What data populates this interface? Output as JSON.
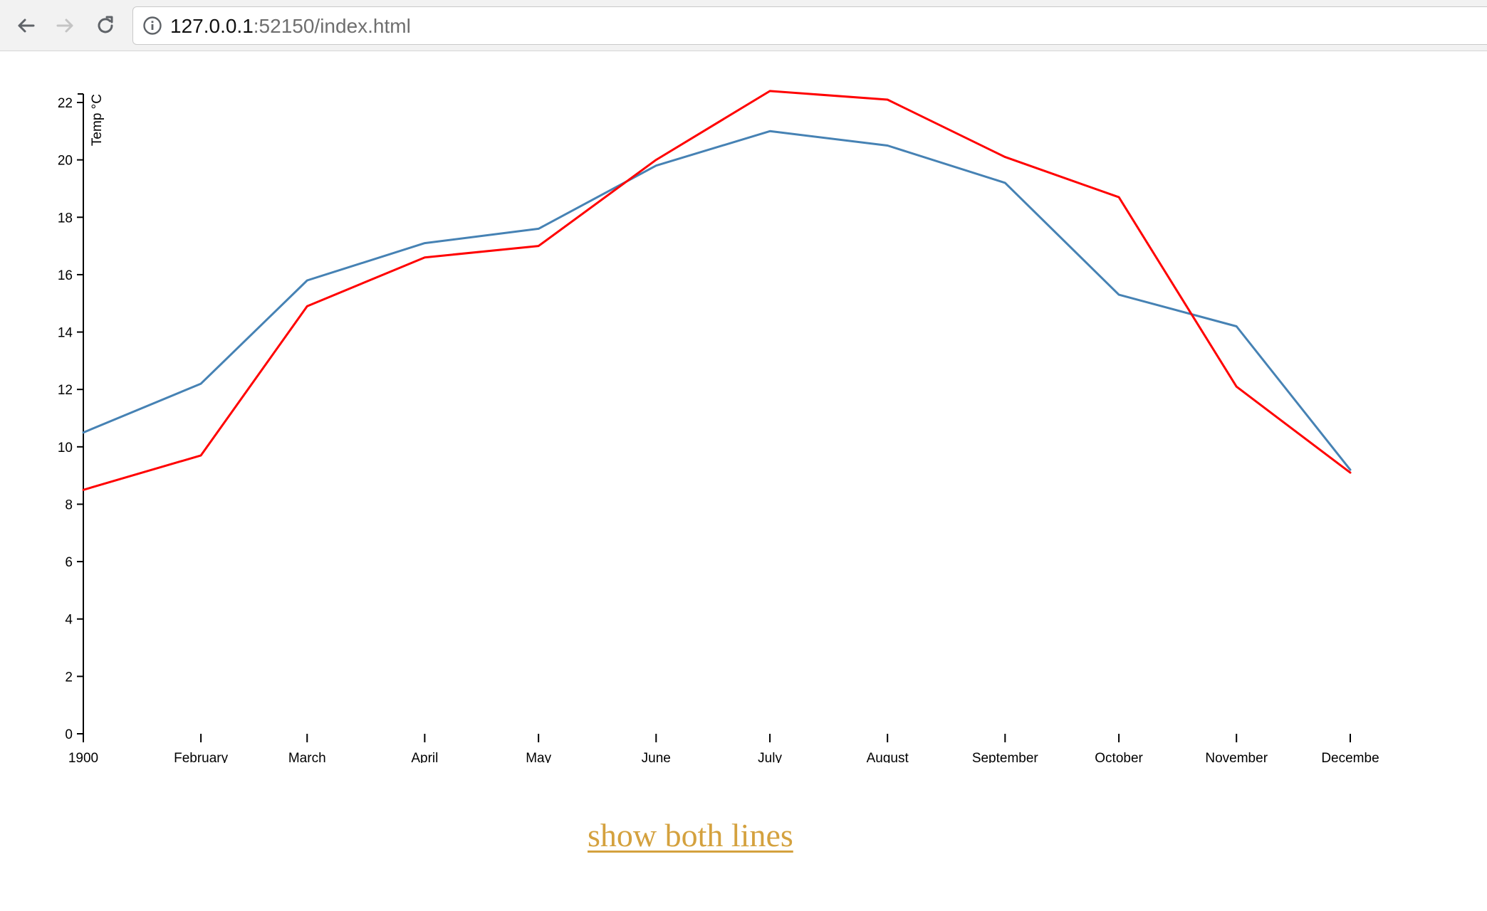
{
  "browser": {
    "url_host": "127.0.0.1",
    "url_rest": ":52150/index.html",
    "icons": {
      "back": "arrow-left-icon",
      "forward": "arrow-right-icon",
      "reload": "reload-icon",
      "info": "info-icon"
    }
  },
  "toggle_link": {
    "label": "show both lines",
    "color": "#d4a13e"
  },
  "chart_data": {
    "type": "line",
    "title": "",
    "xlabel": "",
    "ylabel": "Temp °C",
    "ylim": [
      0,
      22
    ],
    "yticks": [
      0,
      2,
      4,
      6,
      8,
      10,
      12,
      14,
      16,
      18,
      20,
      22
    ],
    "categories": [
      "1900",
      "February",
      "March",
      "April",
      "May",
      "June",
      "July",
      "August",
      "September",
      "October",
      "November",
      "Decembe"
    ],
    "x_days": [
      0,
      31,
      59,
      90,
      120,
      151,
      181,
      212,
      243,
      273,
      304,
      334
    ],
    "grid": false,
    "legend": "none",
    "series": [
      {
        "color": "#4682b4",
        "values": [
          10.5,
          12.2,
          15.8,
          17.1,
          17.6,
          19.8,
          21.0,
          20.5,
          19.2,
          15.3,
          14.2,
          9.2
        ]
      },
      {
        "color": "#ff0000",
        "values": [
          8.5,
          9.7,
          14.9,
          16.6,
          17.0,
          20.0,
          22.4,
          22.1,
          20.1,
          18.7,
          12.1,
          9.1
        ]
      }
    ]
  }
}
